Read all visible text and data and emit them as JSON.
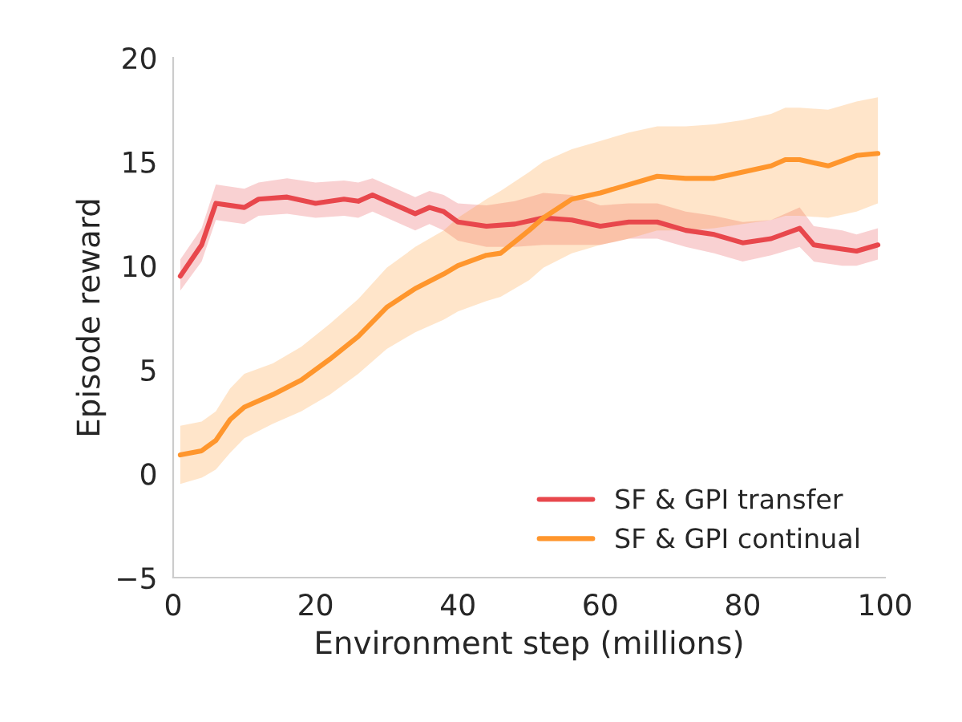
{
  "chart_data": {
    "type": "line",
    "xlabel": "Environment step (millions)",
    "ylabel": "Episode reward",
    "xlim": [
      0,
      100
    ],
    "ylim": [
      -5,
      20
    ],
    "xticks": [
      0,
      20,
      40,
      60,
      80,
      100
    ],
    "yticks": [
      -5,
      0,
      5,
      10,
      15,
      20
    ],
    "grid": false,
    "legend": "bottom right",
    "marker": "none",
    "line_style": "solid",
    "series": [
      {
        "name": "SF & GPI transfer",
        "color": "#e8474c",
        "x": [
          1,
          4,
          6,
          10,
          12,
          16,
          20,
          24,
          26,
          28,
          30,
          34,
          36,
          38,
          40,
          44,
          48,
          52,
          56,
          60,
          64,
          68,
          72,
          76,
          80,
          84,
          88,
          90,
          94,
          96,
          99
        ],
        "values": [
          9.5,
          11,
          13,
          12.8,
          13.2,
          13.3,
          13,
          13.2,
          13.1,
          13.4,
          13.1,
          12.5,
          12.8,
          12.6,
          12.1,
          11.9,
          12,
          12.3,
          12.2,
          11.9,
          12.1,
          12.1,
          11.7,
          11.5,
          11.1,
          11.3,
          11.8,
          11,
          10.8,
          10.7,
          11
        ],
        "lower": [
          8.8,
          10.2,
          12.2,
          12,
          12.4,
          12.5,
          12.3,
          12.4,
          12.3,
          12.6,
          12.3,
          11.7,
          12,
          11.7,
          11.2,
          10.9,
          10.9,
          11,
          11,
          11,
          11.3,
          11.3,
          10.9,
          10.6,
          10.2,
          10.5,
          10.9,
          10.2,
          10,
          10,
          10.3
        ],
        "upper": [
          10.3,
          11.8,
          13.9,
          13.7,
          14,
          14.2,
          14,
          14.1,
          14,
          14.2,
          13.9,
          13.3,
          13.6,
          13.4,
          13,
          12.9,
          13.1,
          13.5,
          13.4,
          12.9,
          13,
          13,
          12.6,
          12.4,
          12.1,
          12.2,
          12.8,
          11.9,
          11.7,
          11.5,
          11.8
        ]
      },
      {
        "name": "SF & GPI continual",
        "color": "#ff962d",
        "x": [
          1,
          4,
          6,
          8,
          10,
          14,
          18,
          22,
          26,
          30,
          34,
          38,
          40,
          44,
          46,
          50,
          52,
          56,
          60,
          64,
          68,
          72,
          76,
          80,
          84,
          86,
          88,
          92,
          96,
          99
        ],
        "values": [
          0.9,
          1.1,
          1.6,
          2.6,
          3.2,
          3.8,
          4.5,
          5.5,
          6.6,
          8,
          8.9,
          9.6,
          10,
          10.5,
          10.6,
          11.7,
          12.3,
          13.2,
          13.5,
          13.9,
          14.3,
          14.2,
          14.2,
          14.5,
          14.8,
          15.1,
          15.1,
          14.8,
          15.3,
          15.4
        ],
        "lower": [
          -0.5,
          -0.2,
          0.2,
          1,
          1.7,
          2.4,
          3,
          3.8,
          4.8,
          6,
          6.8,
          7.4,
          7.8,
          8.3,
          8.5,
          9.3,
          9.9,
          10.6,
          11,
          11.3,
          11.7,
          11.7,
          11.8,
          12,
          12.2,
          12.4,
          12.4,
          12.3,
          12.6,
          13
        ],
        "upper": [
          2.3,
          2.5,
          3,
          4.1,
          4.8,
          5.3,
          6.1,
          7.2,
          8.4,
          9.9,
          10.9,
          11.7,
          12.3,
          13.2,
          13.6,
          14.5,
          15,
          15.6,
          16,
          16.4,
          16.7,
          16.7,
          16.8,
          17,
          17.3,
          17.6,
          17.6,
          17.5,
          17.9,
          18.1
        ]
      }
    ]
  }
}
